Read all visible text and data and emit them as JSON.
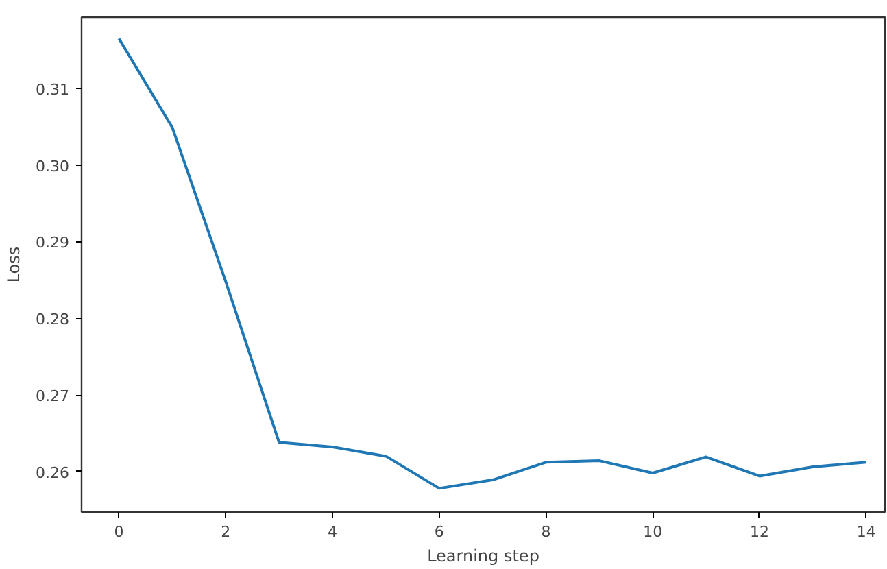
{
  "chart_data": {
    "type": "line",
    "xlabel": "Learning step",
    "ylabel": "Loss",
    "x": [
      0,
      1,
      2,
      3,
      4,
      5,
      6,
      7,
      8,
      9,
      10,
      11,
      12,
      13,
      14
    ],
    "series": [
      {
        "color": "#1f77b4",
        "values": [
          0.3165,
          0.3049,
          0.2848,
          0.2638,
          0.2632,
          0.262,
          0.2578,
          0.2589,
          0.2612,
          0.2614,
          0.2598,
          0.2619,
          0.2594,
          0.2606,
          0.2612
        ]
      }
    ],
    "xlim": [
      -0.7,
      14.35
    ],
    "ylim": [
      0.2547,
      0.3193
    ],
    "xticks": [
      0,
      2,
      4,
      6,
      8,
      10,
      12,
      14
    ],
    "yticks": [
      {
        "value": 0.26,
        "label": "0.26"
      },
      {
        "value": 0.27,
        "label": "0.27"
      },
      {
        "value": 0.28,
        "label": "0.28"
      },
      {
        "value": 0.29,
        "label": "0.29"
      },
      {
        "value": 0.3,
        "label": "0.30"
      },
      {
        "value": 0.31,
        "label": "0.31"
      }
    ],
    "grid": false
  }
}
